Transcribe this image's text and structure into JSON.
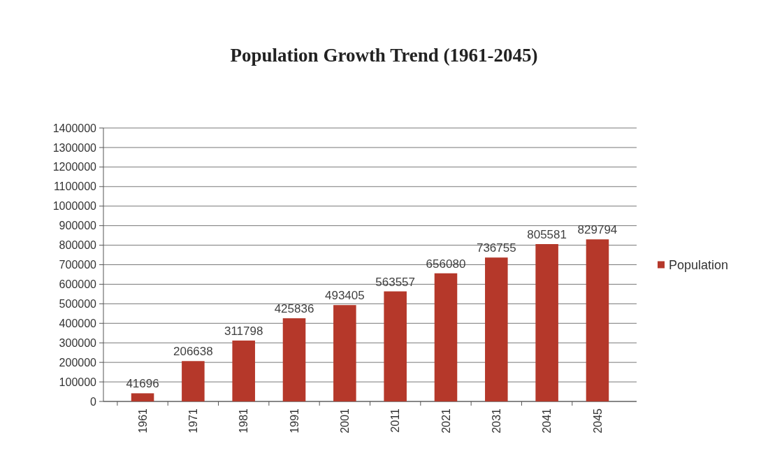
{
  "chart_data": {
    "type": "bar",
    "title": "Population  Growth Trend (1961-2045)",
    "categories": [
      "1961",
      "1971",
      "1981",
      "1991",
      "2001",
      "2011",
      "2021",
      "2031",
      "2041",
      "2045"
    ],
    "series": [
      {
        "name": "Population",
        "color": "#b5382a",
        "values": [
          41696,
          206638,
          311798,
          425836,
          493405,
          563557,
          656080,
          736755,
          805581,
          829794
        ]
      }
    ],
    "ylim": [
      0,
      1400000
    ],
    "yticks": [
      0,
      100000,
      200000,
      300000,
      400000,
      500000,
      600000,
      700000,
      800000,
      900000,
      1000000,
      1100000,
      1200000,
      1300000,
      1400000
    ],
    "grid": "y",
    "legend": "right",
    "data_labels": true
  }
}
